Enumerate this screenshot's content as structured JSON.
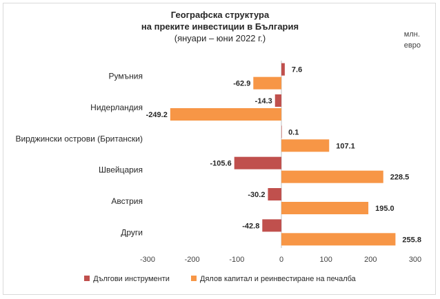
{
  "chart_data": {
    "type": "bar",
    "orientation": "horizontal",
    "title": "Географска структура",
    "subtitle_line": "на преките инвестиции в България",
    "period": "(януари – юни 2022 г.)",
    "unit_line1": "млн.",
    "unit_line2": "евро",
    "categories": [
      "Румъния",
      "Нидерландия",
      "Вирджински острови (Британски)",
      "Швейцария",
      "Австрия",
      "Други"
    ],
    "series": [
      {
        "name": "Дългови инструменти",
        "color": "#c0504d",
        "values": [
          7.6,
          -14.3,
          0.1,
          -105.6,
          -30.2,
          -42.8
        ],
        "labels": [
          "7.6",
          "-14.3",
          "0.1",
          "-105.6",
          "-30.2",
          "-42.8"
        ]
      },
      {
        "name": "Дялов капитал и реинвестиране на печалба",
        "color": "#f79646",
        "values": [
          -62.9,
          -249.2,
          107.1,
          228.5,
          195.0,
          255.8
        ],
        "labels": [
          "-62.9",
          "-249.2",
          "107.1",
          "228.5",
          "195.0",
          "255.8"
        ]
      }
    ],
    "xlim": [
      -300,
      300
    ],
    "xticks": [
      "-300",
      "-200",
      "-100",
      "0",
      "100",
      "200",
      "300"
    ],
    "legend_position": "bottom"
  }
}
